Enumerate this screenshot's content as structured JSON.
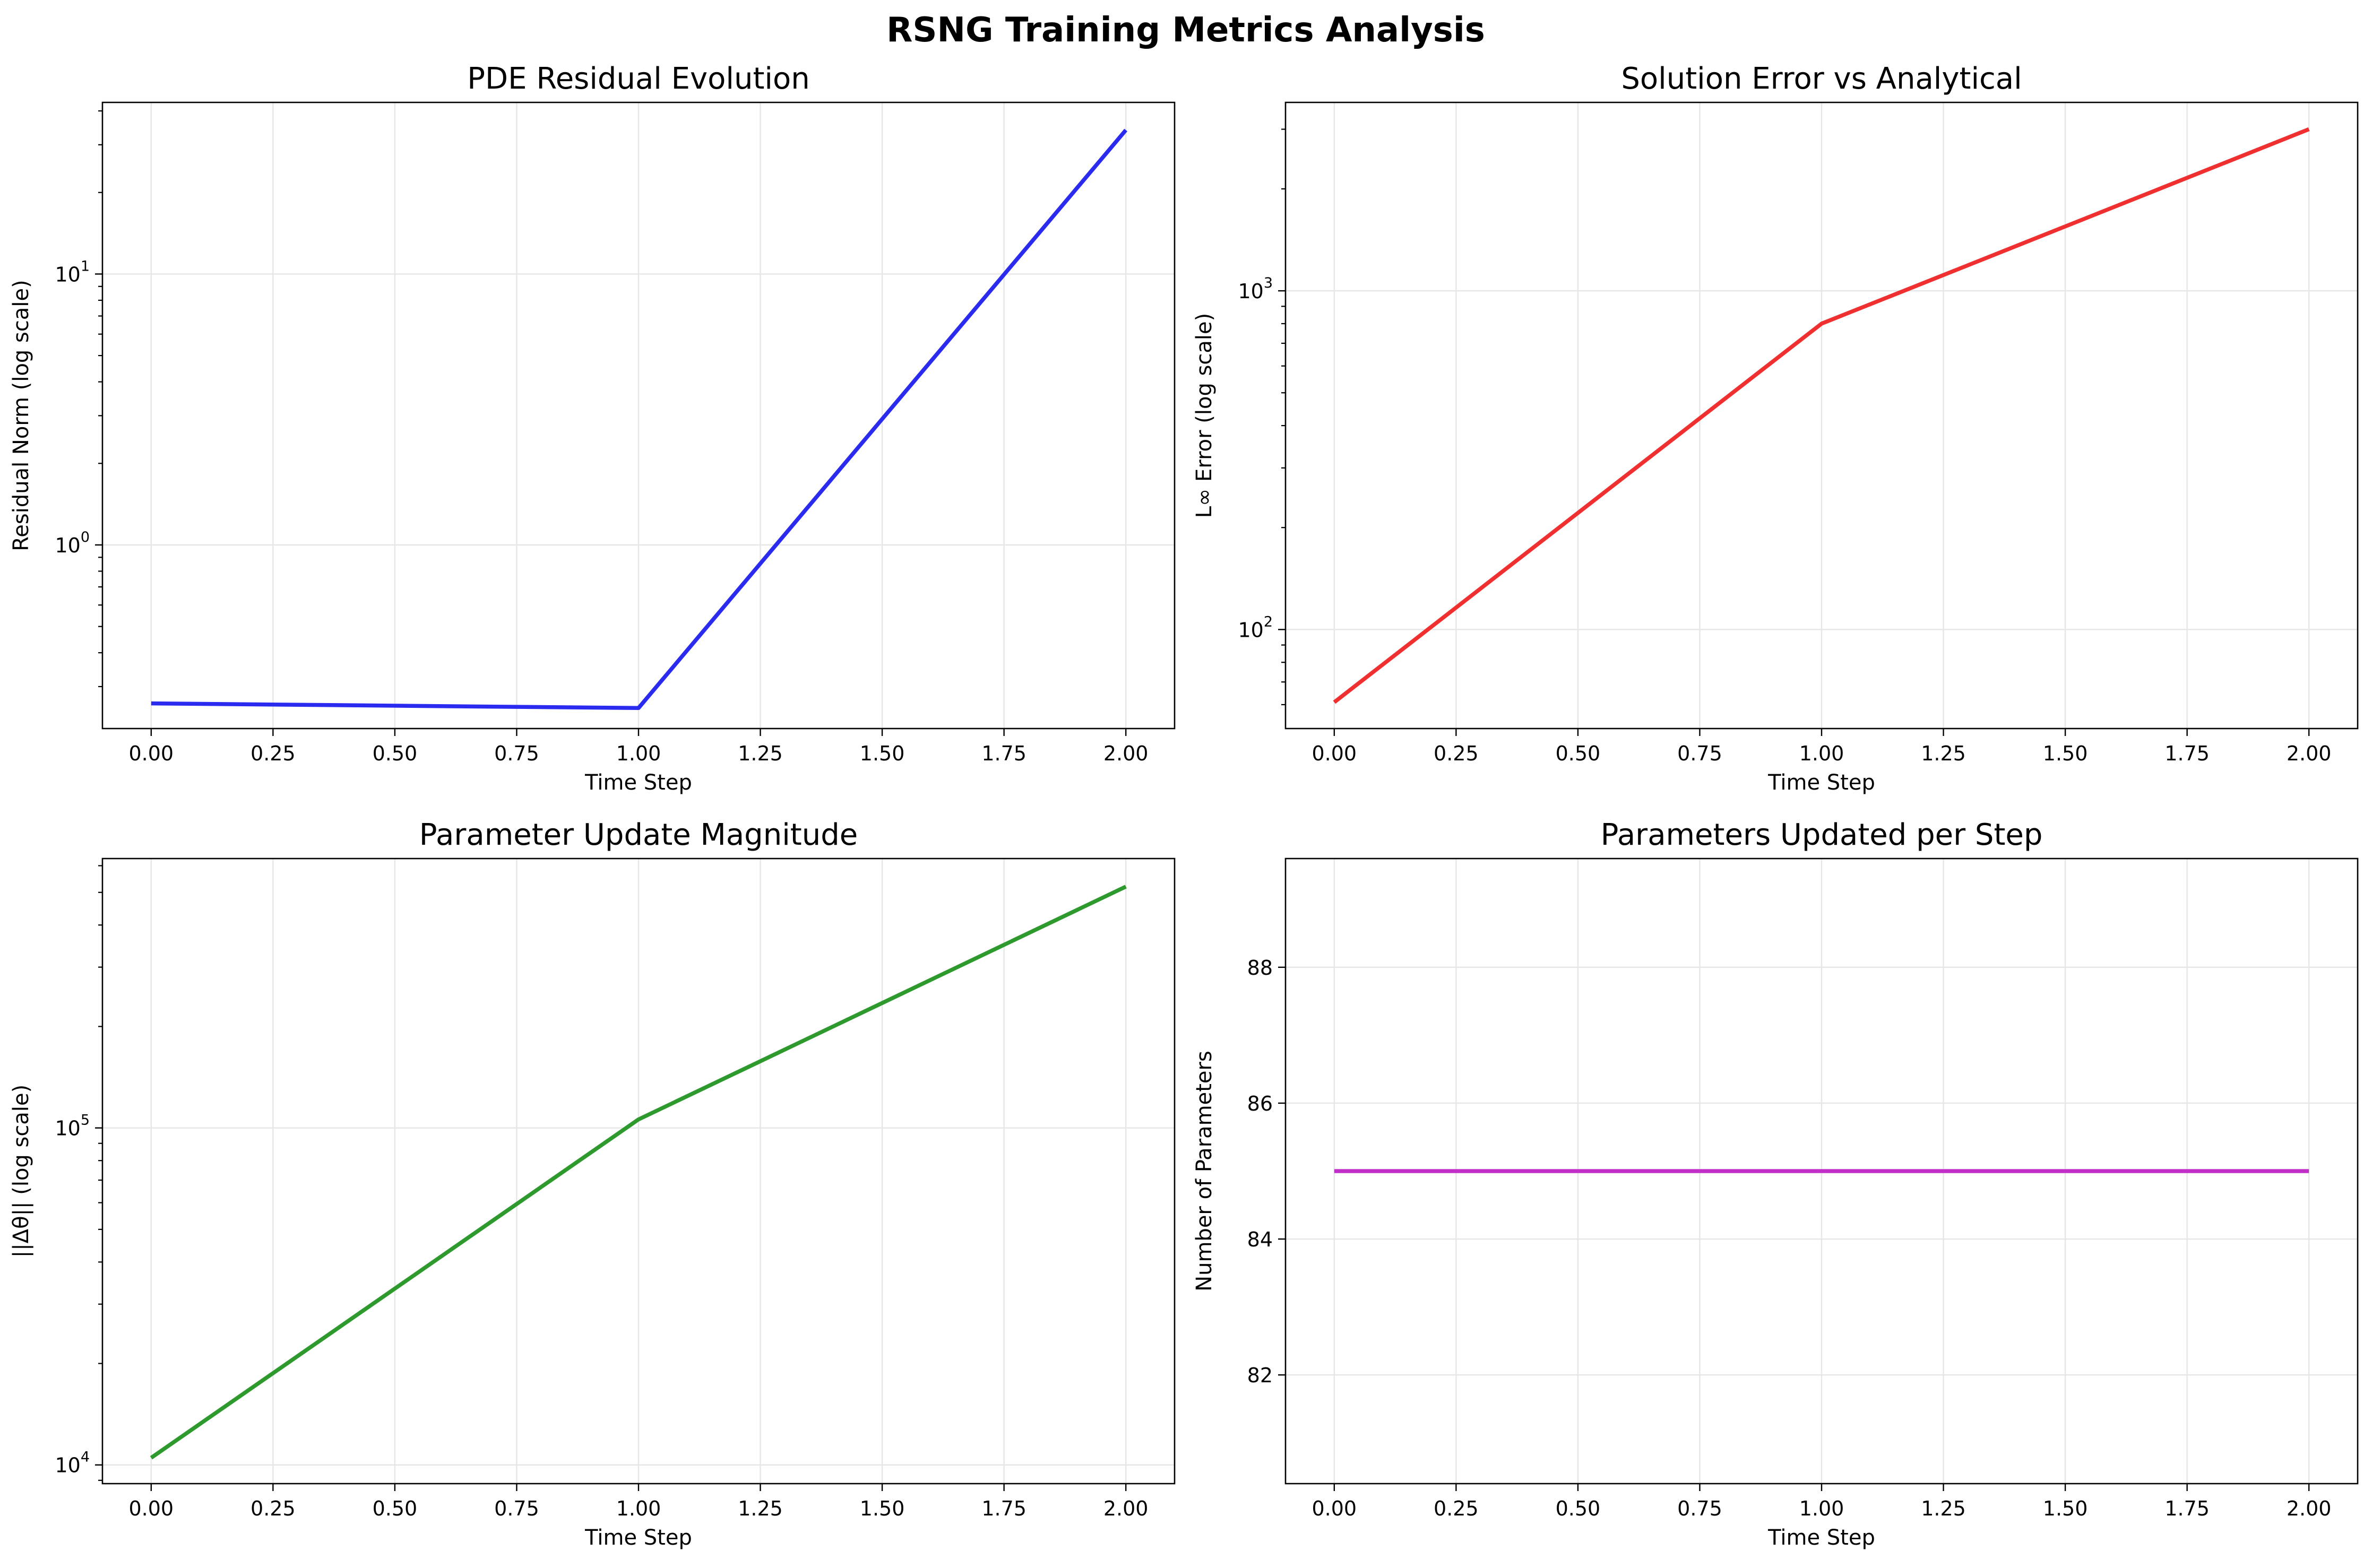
{
  "figure": {
    "title": "RSNG Training Metrics Analysis"
  },
  "chart_data": [
    {
      "type": "line",
      "title": "PDE Residual Evolution",
      "xlabel": "Time Step",
      "ylabel": "Residual Norm (log scale)",
      "yscale": "log",
      "x": [
        0,
        1,
        2
      ],
      "series": [
        {
          "values": [
            0.26,
            0.25,
            34.0
          ],
          "color": "#2b2bf0"
        }
      ],
      "xlim": [
        -0.1,
        2.1
      ],
      "ylim": [
        0.21,
        43
      ],
      "xticks": [
        0,
        0.25,
        0.5,
        0.75,
        1.0,
        1.25,
        1.5,
        1.75,
        2.0
      ],
      "xtick_labels": [
        "0.00",
        "0.25",
        "0.50",
        "0.75",
        "1.00",
        "1.25",
        "1.50",
        "1.75",
        "2.00"
      ],
      "yticks": [
        {
          "value": 1,
          "base": "10",
          "exp": "0"
        },
        {
          "value": 10,
          "base": "10",
          "exp": "1"
        }
      ],
      "grid": true
    },
    {
      "type": "line",
      "title": "Solution Error vs Analytical",
      "xlabel": "Time Step",
      "ylabel": "L∞ Error (log scale)",
      "yscale": "log",
      "x": [
        0,
        1,
        2
      ],
      "series": [
        {
          "values": [
            61,
            800,
            3000
          ],
          "color": "#f03030"
        }
      ],
      "xlim": [
        -0.1,
        2.1
      ],
      "ylim": [
        51,
        3600
      ],
      "xticks": [
        0,
        0.25,
        0.5,
        0.75,
        1.0,
        1.25,
        1.5,
        1.75,
        2.0
      ],
      "xtick_labels": [
        "0.00",
        "0.25",
        "0.50",
        "0.75",
        "1.00",
        "1.25",
        "1.50",
        "1.75",
        "2.00"
      ],
      "yticks": [
        {
          "value": 100,
          "base": "10",
          "exp": "2"
        },
        {
          "value": 1000,
          "base": "10",
          "exp": "3"
        }
      ],
      "grid": true
    },
    {
      "type": "line",
      "title": "Parameter Update Magnitude",
      "xlabel": "Time Step",
      "ylabel": "||Δθ|| (log scale)",
      "yscale": "log",
      "x": [
        0,
        1,
        2
      ],
      "series": [
        {
          "values": [
            10500,
            106000,
            520000
          ],
          "color": "#2e9a2e"
        }
      ],
      "xlim": [
        -0.1,
        2.1
      ],
      "ylim": [
        8800,
        630000
      ],
      "xticks": [
        0,
        0.25,
        0.5,
        0.75,
        1.0,
        1.25,
        1.5,
        1.75,
        2.0
      ],
      "xtick_labels": [
        "0.00",
        "0.25",
        "0.50",
        "0.75",
        "1.00",
        "1.25",
        "1.50",
        "1.75",
        "2.00"
      ],
      "yticks": [
        {
          "value": 10000,
          "base": "10",
          "exp": "4"
        },
        {
          "value": 100000,
          "base": "10",
          "exp": "5"
        }
      ],
      "grid": true
    },
    {
      "type": "line",
      "title": "Parameters Updated per Step",
      "xlabel": "Time Step",
      "ylabel": "Number of Parameters",
      "yscale": "linear",
      "x": [
        0,
        1,
        2
      ],
      "series": [
        {
          "values": [
            85,
            85,
            85
          ],
          "color": "#c030c8"
        }
      ],
      "xlim": [
        -0.1,
        2.1
      ],
      "ylim": [
        80.4,
        89.6
      ],
      "xticks": [
        0,
        0.25,
        0.5,
        0.75,
        1.0,
        1.25,
        1.5,
        1.75,
        2.0
      ],
      "xtick_labels": [
        "0.00",
        "0.25",
        "0.50",
        "0.75",
        "1.00",
        "1.25",
        "1.50",
        "1.75",
        "2.00"
      ],
      "yticks": [
        {
          "value": 82,
          "label": "82"
        },
        {
          "value": 84,
          "label": "84"
        },
        {
          "value": 86,
          "label": "86"
        },
        {
          "value": 88,
          "label": "88"
        }
      ],
      "grid": true
    }
  ]
}
